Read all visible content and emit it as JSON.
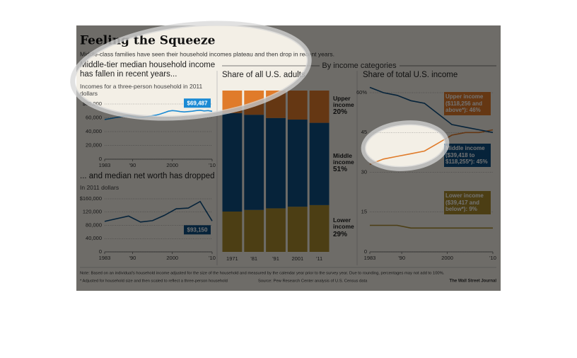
{
  "title": "Feeling the Squeeze",
  "subtitle": "Middle-class families have seen their household incomes plateau and then drop in recent years.",
  "section": "By income categories",
  "note": "Note: Based on an individual's household income adjusted for the size of the household and measured by the calendar year prior to the survey year. Due to rounding, percentages may not add to 100%.",
  "footnote": "* Adjusted for household size and then scaled to reflect a three-person household",
  "source": "Source: Pew Research Center analysis of U.S. Census data",
  "credit": "The Wall Street Journal",
  "chart_data": [
    {
      "type": "line",
      "title": "Middle-tier median household income has fallen in recent years...",
      "subtitle": "Incomes for a three-person household in 2011 dollars",
      "color": "#1a8ad4",
      "x": [
        1983,
        1984,
        1985,
        1986,
        1987,
        1988,
        1989,
        1990,
        1991,
        1992,
        1993,
        1994,
        1995,
        1996,
        1997,
        1998,
        1999,
        2000,
        2001,
        2002,
        2003,
        2004,
        2005,
        2006,
        2007,
        2008,
        2009,
        2010
      ],
      "values": [
        57500,
        58500,
        59500,
        60500,
        61500,
        62500,
        63000,
        62000,
        61000,
        60500,
        61000,
        62000,
        63000,
        64000,
        65500,
        67500,
        69500,
        70500,
        70000,
        69000,
        68500,
        69000,
        69500,
        70500,
        71000,
        70000,
        70500,
        69487
      ],
      "value_labels": [
        null,
        null,
        null,
        null,
        null,
        null,
        null,
        null,
        null,
        null,
        null,
        null,
        null,
        null,
        null,
        null,
        null,
        null,
        null,
        null,
        null,
        null,
        null,
        null,
        null,
        null,
        null,
        "$69,487"
      ],
      "xlim": [
        1983,
        2010
      ],
      "xticks": [
        1983,
        {
          "value": 1990,
          "label": "'90"
        },
        2000,
        {
          "value": 2010,
          "label": "'10"
        }
      ],
      "ylim": [
        0,
        80000
      ],
      "yticks": [
        0,
        {
          "value": 20000,
          "label": "20,000"
        },
        {
          "value": 40000,
          "label": "40,000"
        },
        {
          "value": 60000,
          "label": "60,000"
        },
        {
          "value": 80000,
          "label": "$80,000"
        }
      ],
      "grid": true
    },
    {
      "type": "line",
      "title": "... and median net worth has dropped",
      "subtitle": "In 2011 dollars",
      "color": "#0e4e82",
      "x": [
        1983,
        1989,
        1992,
        1995,
        1998,
        2001,
        2004,
        2007,
        2010
      ],
      "values": [
        92000,
        108000,
        90000,
        94000,
        110000,
        130000,
        132000,
        152000,
        93150
      ],
      "value_labels": [
        null,
        null,
        null,
        null,
        null,
        null,
        null,
        null,
        "$93,150"
      ],
      "xlim": [
        1983,
        2010
      ],
      "xticks": [
        1983,
        {
          "value": 1990,
          "label": "'90"
        },
        2000,
        {
          "value": 2010,
          "label": "'10"
        }
      ],
      "ylim": [
        0,
        160000
      ],
      "yticks": [
        0,
        {
          "value": 40000,
          "label": "40,000"
        },
        {
          "value": 80000,
          "label": "80,000"
        },
        {
          "value": 120000,
          "label": "120,000"
        },
        {
          "value": 160000,
          "label": "$160,000"
        }
      ],
      "grid": true
    },
    {
      "type": "bar",
      "title": "Share of all U.S. adults",
      "categories": [
        "1971",
        "'81",
        "'91",
        "2001",
        "'11"
      ],
      "series": [
        {
          "name": "Lower income",
          "color": "#a88a2e",
          "values": [
            25,
            26,
            27,
            28,
            29
          ],
          "value_labels": [
            null,
            null,
            null,
            null,
            "29%"
          ]
        },
        {
          "name": "Middle income",
          "color": "#0e4e82",
          "values": [
            61,
            59,
            56,
            54,
            51
          ],
          "value_labels": [
            null,
            null,
            null,
            null,
            "51%"
          ]
        },
        {
          "name": "Upper income",
          "color": "#e07b2a",
          "values": [
            14,
            15,
            17,
            18,
            20
          ],
          "value_labels": [
            null,
            null,
            null,
            null,
            "20%"
          ]
        }
      ],
      "ylim": [
        0,
        100
      ]
    },
    {
      "type": "line",
      "title": "Share of total U.S. income",
      "x": [
        1983,
        1986,
        1989,
        1992,
        1995,
        1998,
        2001,
        2004,
        2007,
        2010
      ],
      "series": [
        {
          "name": "Upper income ($118,256 and above*): 46%",
          "color": "#e07b2a",
          "values": [
            33,
            35,
            36,
            37,
            38,
            41,
            44,
            45,
            45,
            46
          ]
        },
        {
          "name": "Middle income ($39,418 to $118,255*): 45%",
          "color": "#0e4e82",
          "values": [
            62,
            60,
            59,
            57,
            56,
            52,
            48,
            47,
            46,
            45
          ]
        },
        {
          "name": "Lower income ($39,417 and below*): 9%",
          "color": "#a88a2e",
          "values": [
            10,
            10,
            10,
            9,
            9,
            9,
            9,
            9,
            9,
            9
          ]
        }
      ],
      "xlim": [
        1983,
        2010
      ],
      "xticks": [
        1983,
        {
          "value": 1990,
          "label": "'90"
        },
        2000,
        {
          "value": 2010,
          "label": "'10"
        }
      ],
      "ylim": [
        0,
        60
      ],
      "yticks": [
        0,
        15,
        30,
        45,
        {
          "value": 60,
          "label": "60%"
        }
      ],
      "grid": true
    }
  ]
}
